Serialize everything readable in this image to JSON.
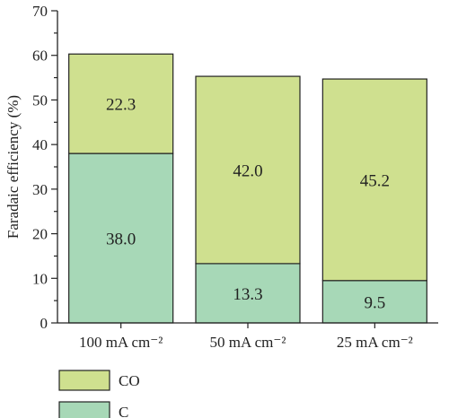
{
  "chart_data": {
    "type": "bar",
    "stacked": true,
    "categories": [
      "100 mA cm⁻²",
      "50 mA cm⁻²",
      "25 mA cm⁻²"
    ],
    "series": [
      {
        "name": "C",
        "values": [
          38.0,
          13.3,
          9.5
        ],
        "labels": [
          "38.0",
          "13.3",
          "9.5"
        ],
        "color": "#a7d8b7"
      },
      {
        "name": "CO",
        "values": [
          22.3,
          42.0,
          45.2
        ],
        "labels": [
          "22.3",
          "42.0",
          "45.2"
        ],
        "color": "#cfe08f"
      }
    ],
    "ylabel": "Faradaic efficiency (%)",
    "xlabel": "",
    "title": "",
    "ylim": [
      0,
      70
    ],
    "yticks": [
      0,
      10,
      20,
      30,
      40,
      50,
      60,
      70
    ],
    "grid": false,
    "legend_position": "bottom-left",
    "legend_order": [
      "CO",
      "C"
    ]
  }
}
